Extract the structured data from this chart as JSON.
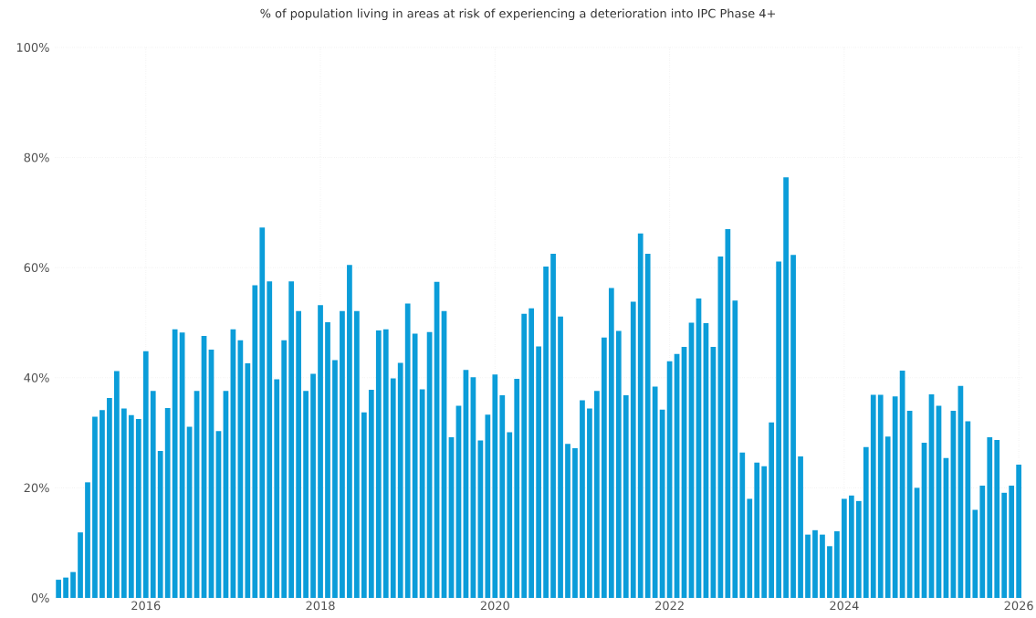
{
  "chart_data": {
    "type": "bar",
    "title": "% of population living in areas at risk of experiencing a deterioration into IPC Phase 4+",
    "x": [
      "2015-01",
      "2015-02",
      "2015-03",
      "2015-04",
      "2015-05",
      "2015-06",
      "2015-07",
      "2015-08",
      "2015-09",
      "2015-10",
      "2015-11",
      "2015-12",
      "2016-01",
      "2016-02",
      "2016-03",
      "2016-04",
      "2016-05",
      "2016-06",
      "2016-07",
      "2016-08",
      "2016-09",
      "2016-10",
      "2016-11",
      "2016-12",
      "2017-01",
      "2017-02",
      "2017-03",
      "2017-04",
      "2017-05",
      "2017-06",
      "2017-07",
      "2017-08",
      "2017-09",
      "2017-10",
      "2017-11",
      "2017-12",
      "2018-01",
      "2018-02",
      "2018-03",
      "2018-04",
      "2018-05",
      "2018-06",
      "2018-07",
      "2018-08",
      "2018-09",
      "2018-10",
      "2018-11",
      "2018-12",
      "2019-01",
      "2019-02",
      "2019-03",
      "2019-04",
      "2019-05",
      "2019-06",
      "2019-07",
      "2019-08",
      "2019-09",
      "2019-10",
      "2019-11",
      "2019-12",
      "2020-01",
      "2020-02",
      "2020-03",
      "2020-04",
      "2020-05",
      "2020-06",
      "2020-07",
      "2020-08",
      "2020-09",
      "2020-10",
      "2020-11",
      "2020-12",
      "2021-01",
      "2021-02",
      "2021-03",
      "2021-04",
      "2021-05",
      "2021-06",
      "2021-07",
      "2021-08",
      "2021-09",
      "2021-10",
      "2021-11",
      "2021-12",
      "2022-01",
      "2022-02",
      "2022-03",
      "2022-04",
      "2022-05",
      "2022-06",
      "2022-07",
      "2022-08",
      "2022-09",
      "2022-10",
      "2022-11",
      "2022-12",
      "2023-01",
      "2023-02",
      "2023-03",
      "2023-04",
      "2023-05",
      "2023-06",
      "2023-07",
      "2023-08",
      "2023-09",
      "2023-10",
      "2023-11",
      "2023-12",
      "2024-01",
      "2024-02",
      "2024-03",
      "2024-04",
      "2024-05",
      "2024-06",
      "2024-07",
      "2024-08",
      "2024-09",
      "2024-10",
      "2024-11",
      "2024-12",
      "2025-01",
      "2025-02",
      "2025-03",
      "2025-04",
      "2025-05",
      "2025-06",
      "2025-07",
      "2025-08",
      "2025-09",
      "2025-10",
      "2025-11",
      "2025-12",
      "2026-01"
    ],
    "values": [
      3.3,
      3.7,
      4.7,
      11.9,
      21.0,
      32.9,
      34.1,
      36.3,
      41.2,
      34.4,
      33.2,
      32.5,
      44.8,
      37.6,
      26.7,
      34.5,
      48.8,
      48.2,
      31.1,
      37.6,
      47.6,
      45.1,
      30.3,
      37.6,
      48.8,
      46.8,
      42.6,
      56.8,
      67.3,
      57.5,
      39.7,
      46.8,
      57.5,
      52.1,
      37.6,
      40.7,
      53.2,
      50.1,
      43.2,
      52.1,
      60.5,
      52.1,
      33.7,
      37.8,
      48.6,
      48.8,
      39.9,
      42.7,
      53.5,
      48.0,
      37.9,
      48.3,
      57.4,
      52.1,
      29.2,
      34.9,
      41.4,
      40.1,
      28.6,
      33.3,
      40.6,
      36.8,
      30.1,
      39.8,
      51.6,
      52.6,
      45.7,
      60.2,
      62.5,
      51.1,
      28.0,
      27.2,
      35.9,
      34.4,
      37.6,
      47.3,
      56.3,
      48.5,
      36.8,
      53.8,
      66.2,
      62.5,
      38.4,
      34.2,
      43.0,
      44.3,
      45.6,
      50.0,
      54.4,
      49.9,
      45.6,
      62.0,
      67.0,
      54.0,
      26.4,
      18.0,
      24.6,
      23.9,
      31.9,
      61.1,
      76.4,
      62.3,
      25.7,
      11.5,
      12.3,
      11.5,
      9.4,
      12.1,
      18.0,
      18.6,
      17.6,
      27.4,
      36.9,
      36.9,
      29.3,
      36.6,
      41.3,
      34.0,
      20.0,
      28.2,
      37.0,
      34.9,
      25.4,
      34.0,
      38.5,
      32.1,
      16.0,
      20.4,
      29.2,
      28.7,
      19.1,
      20.4,
      24.2
    ],
    "color": "#0b9dd9",
    "xlim": [
      "2014-12-16",
      "2026-01-16"
    ],
    "xticks": [
      {
        "value": "2016-01",
        "label": "2016"
      },
      {
        "value": "2018-01",
        "label": "2018"
      },
      {
        "value": "2020-01",
        "label": "2020"
      },
      {
        "value": "2022-01",
        "label": "2022"
      },
      {
        "value": "2024-01",
        "label": "2024"
      },
      {
        "value": "2026-01",
        "label": "2026"
      }
    ],
    "ylim": [
      0,
      100
    ],
    "yticks": [
      {
        "value": 0,
        "label": "0%"
      },
      {
        "value": 20,
        "label": "20%"
      },
      {
        "value": 40,
        "label": "40%"
      },
      {
        "value": 60,
        "label": "60%"
      },
      {
        "value": 80,
        "label": "80%"
      },
      {
        "value": 100,
        "label": "100%"
      }
    ],
    "grid": true
  }
}
